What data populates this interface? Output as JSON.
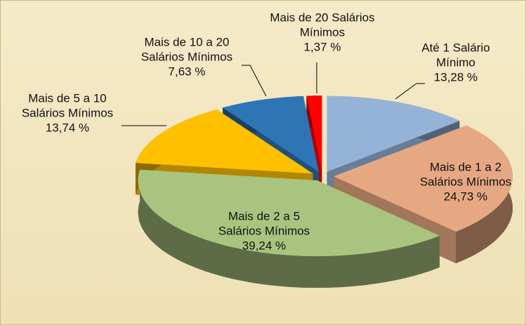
{
  "chart_data": {
    "type": "pie3d",
    "categories": [
      "Até 1 Salário Mínimo",
      "Mais de 1 a 2 Salários Mínimos",
      "Mais de 2 a 5 Salários Mínimos",
      "Mais de 5 a 10 Salários Mínimos",
      "Mais de 10 a 20 Salários Mínimos",
      "Mais de 20 Salários Mínimos"
    ],
    "values": [
      13.28,
      24.73,
      39.24,
      13.74,
      7.63,
      1.37
    ],
    "value_labels": [
      "13,28 %",
      "24,73 %",
      "39,24 %",
      "13,74 %",
      "7,63 %",
      "1,37 %"
    ],
    "colors": [
      "#95b3d7",
      "#e6a882",
      "#a9c47f",
      "#ffc000",
      "#2e75b6",
      "#ff0000"
    ]
  }
}
